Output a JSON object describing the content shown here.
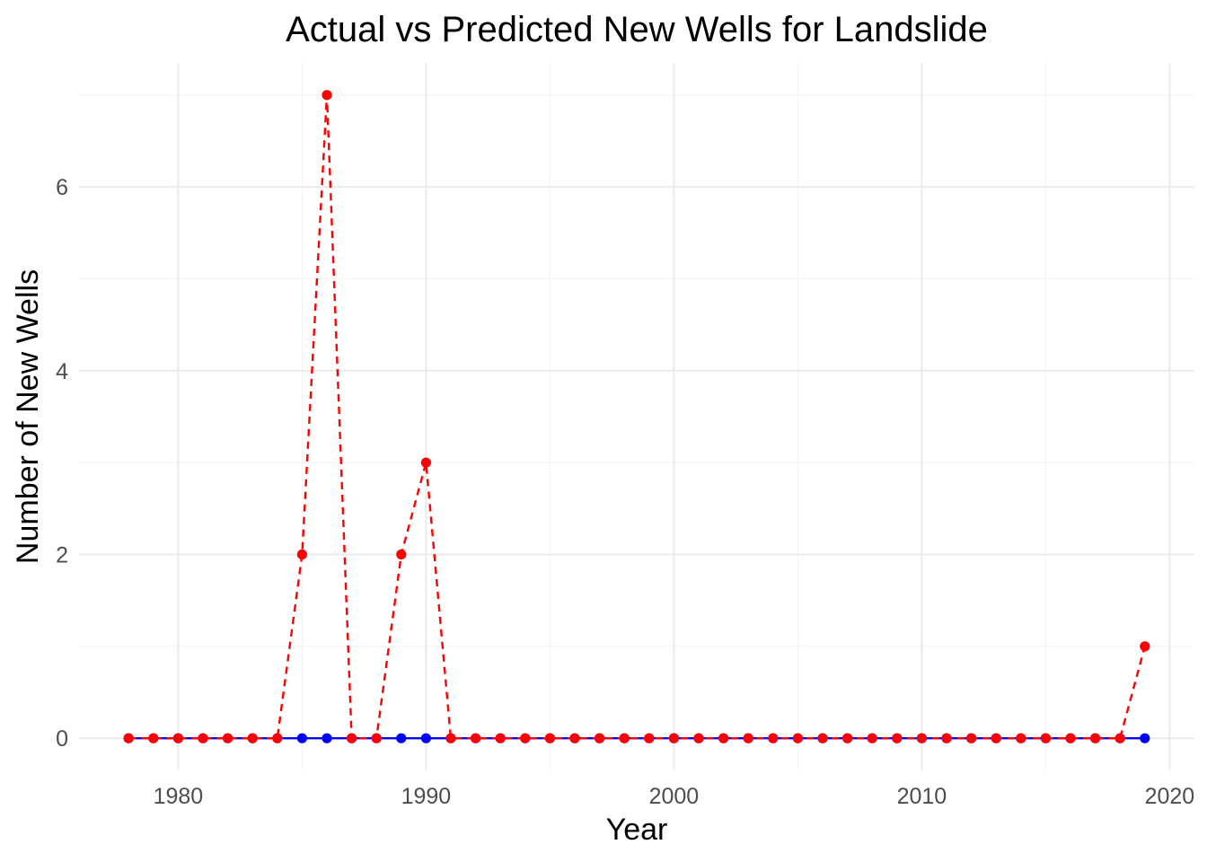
{
  "chart_data": {
    "type": "line",
    "title": "Actual vs Predicted New Wells for Landslide",
    "xlabel": "Year",
    "ylabel": "Number of New Wells",
    "xlim": [
      1976,
      2021
    ],
    "ylim": [
      -0.35,
      7.35
    ],
    "x_ticks": [
      1980,
      1990,
      2000,
      2010,
      2020
    ],
    "y_ticks": [
      0,
      2,
      4,
      6
    ],
    "x_minor": [
      1985,
      1995,
      2005,
      2015
    ],
    "y_minor": [
      1,
      3,
      5,
      7
    ],
    "grid": true,
    "legend": "none",
    "x": [
      1978,
      1979,
      1980,
      1981,
      1982,
      1983,
      1984,
      1985,
      1986,
      1987,
      1988,
      1989,
      1990,
      1991,
      1992,
      1993,
      1994,
      1995,
      1996,
      1997,
      1998,
      1999,
      2000,
      2001,
      2002,
      2003,
      2004,
      2005,
      2006,
      2007,
      2008,
      2009,
      2010,
      2011,
      2012,
      2013,
      2014,
      2015,
      2016,
      2017,
      2018,
      2019
    ],
    "series": [
      {
        "color": "#0000ff",
        "line_style": "solid",
        "values": [
          0,
          0,
          0,
          0,
          0,
          0,
          0,
          0,
          0,
          0,
          0,
          0,
          0,
          0,
          0,
          0,
          0,
          0,
          0,
          0,
          0,
          0,
          0,
          0,
          0,
          0,
          0,
          0,
          0,
          0,
          0,
          0,
          0,
          0,
          0,
          0,
          0,
          0,
          0,
          0,
          0,
          0
        ]
      },
      {
        "color": "#ff0000",
        "line_style": "dashed",
        "values": [
          0,
          0,
          0,
          0,
          0,
          0,
          0,
          2,
          7,
          0,
          0,
          2,
          3,
          0,
          0,
          0,
          0,
          0,
          0,
          0,
          0,
          0,
          0,
          0,
          0,
          0,
          0,
          0,
          0,
          0,
          0,
          0,
          0,
          0,
          0,
          0,
          0,
          0,
          0,
          0,
          0,
          1
        ]
      }
    ]
  }
}
